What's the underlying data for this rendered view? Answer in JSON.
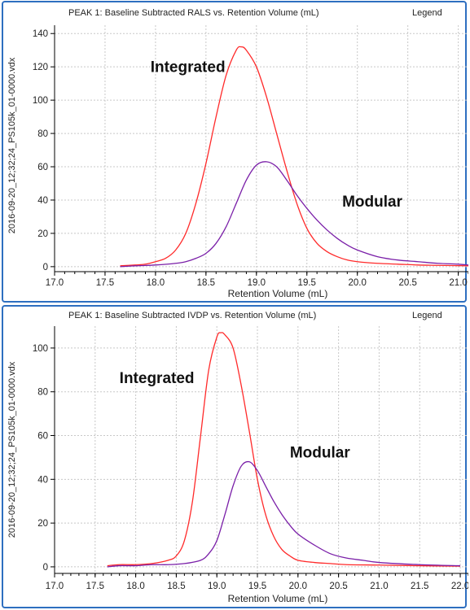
{
  "y_side_label": "2016-09-20_12;32;24_PS105k_01-0000.vdx",
  "chart_data": [
    {
      "type": "line",
      "title": "PEAK 1: Baseline Subtracted RALS vs. Retention Volume (mL)",
      "legend_label": "Legend",
      "xlabel": "Retention Volume (mL)",
      "ylabel": "2016-09-20_12;32;24_PS105k_01-0000.vdx",
      "xlim": [
        17.0,
        21.1
      ],
      "ylim": [
        -3,
        145
      ],
      "xticks": [
        17.0,
        17.5,
        18.0,
        18.5,
        19.0,
        19.5,
        20.0,
        20.5,
        21.0
      ],
      "xtick_labels": [
        "17.0",
        "17.5",
        "18.0",
        "18.5",
        "19.0",
        "19.5",
        "20.0",
        "20.5",
        "21.0"
      ],
      "yticks": [
        0,
        20,
        40,
        60,
        80,
        100,
        120,
        140
      ],
      "ytick_labels": [
        "0",
        "20",
        "40",
        "60",
        "80",
        "100",
        "120",
        "140"
      ],
      "grid": true,
      "legend_position": "top-right",
      "annotations": [
        {
          "text": "Integrated",
          "x": 17.95,
          "y": 117
        },
        {
          "text": "Modular",
          "x": 19.85,
          "y": 36
        }
      ],
      "series": [
        {
          "color": "#ff2a2a",
          "x": [
            17.65,
            17.8,
            17.9,
            18.0,
            18.1,
            18.2,
            18.3,
            18.4,
            18.5,
            18.6,
            18.7,
            18.8,
            18.85,
            18.9,
            19.0,
            19.1,
            19.2,
            19.3,
            19.4,
            19.5,
            19.6,
            19.7,
            19.8,
            19.9,
            20.0,
            20.2,
            20.4,
            20.6,
            20.8,
            21.0,
            21.1
          ],
          "values": [
            0.5,
            1,
            1.5,
            3,
            5,
            10,
            20,
            38,
            62,
            90,
            115,
            130,
            132,
            130,
            120,
            102,
            80,
            58,
            38,
            23,
            14,
            9,
            6,
            4,
            3,
            2,
            1.5,
            1,
            0.8,
            0.6,
            0.5
          ]
        },
        {
          "color": "#7a1fa8",
          "x": [
            17.65,
            17.8,
            18.0,
            18.2,
            18.3,
            18.4,
            18.5,
            18.6,
            18.7,
            18.8,
            18.9,
            19.0,
            19.1,
            19.2,
            19.3,
            19.4,
            19.5,
            19.6,
            19.7,
            19.8,
            19.9,
            20.0,
            20.2,
            20.4,
            20.6,
            20.8,
            21.0,
            21.1
          ],
          "values": [
            0,
            0.5,
            1,
            2,
            3,
            5,
            8,
            14,
            24,
            38,
            52,
            61,
            63,
            60,
            52,
            43,
            35,
            28,
            22,
            17,
            13,
            10,
            6,
            4,
            3,
            2,
            1.5,
            1
          ]
        }
      ]
    },
    {
      "type": "line",
      "title": "PEAK 1: Baseline Subtracted IVDP vs. Retention Volume (mL)",
      "legend_label": "Legend",
      "xlabel": "Retention Volume (mL)",
      "ylabel": "2016-09-20_12;32;24_PS105k_01-0000.vdx",
      "xlim": [
        17.0,
        22.1
      ],
      "ylim": [
        -3,
        110
      ],
      "xticks": [
        17.0,
        17.5,
        18.0,
        18.5,
        19.0,
        19.5,
        20.0,
        20.5,
        21.0,
        21.5,
        22.0
      ],
      "xtick_labels": [
        "17.0",
        "17.5",
        "18.0",
        "18.5",
        "19.0",
        "19.5",
        "20.0",
        "20.5",
        "21.0",
        "21.5",
        "22.0"
      ],
      "yticks": [
        0,
        20,
        40,
        60,
        80,
        100
      ],
      "ytick_labels": [
        "0",
        "20",
        "40",
        "60",
        "80",
        "100"
      ],
      "grid": true,
      "legend_position": "top-right",
      "annotations": [
        {
          "text": "Integrated",
          "x": 17.8,
          "y": 84
        },
        {
          "text": "Modular",
          "x": 19.9,
          "y": 50
        }
      ],
      "series": [
        {
          "color": "#ff2a2a",
          "x": [
            17.65,
            17.8,
            18.0,
            18.2,
            18.4,
            18.5,
            18.6,
            18.7,
            18.8,
            18.9,
            19.0,
            19.05,
            19.1,
            19.2,
            19.3,
            19.4,
            19.5,
            19.6,
            19.7,
            19.8,
            19.9,
            20.0,
            20.2,
            20.4,
            20.6,
            21.0,
            21.5,
            22.0
          ],
          "values": [
            0.5,
            1,
            1,
            1.5,
            3,
            5,
            12,
            30,
            60,
            90,
            105,
            107,
            106,
            100,
            83,
            62,
            40,
            24,
            14,
            8,
            5,
            3,
            2,
            1.5,
            1,
            0.8,
            0.5,
            0.3
          ]
        },
        {
          "color": "#7a1fa8",
          "x": [
            17.65,
            17.8,
            18.0,
            18.2,
            18.4,
            18.6,
            18.8,
            18.9,
            19.0,
            19.1,
            19.2,
            19.3,
            19.4,
            19.5,
            19.6,
            19.7,
            19.8,
            19.9,
            20.0,
            20.2,
            20.4,
            20.6,
            20.8,
            21.0,
            21.5,
            22.0
          ],
          "values": [
            0,
            0.5,
            0.5,
            1,
            1,
            1.5,
            3,
            6,
            12,
            24,
            37,
            46,
            48,
            44,
            37,
            30,
            24,
            19,
            15,
            10,
            6,
            4,
            3,
            2,
            1,
            0.5
          ]
        }
      ]
    }
  ]
}
